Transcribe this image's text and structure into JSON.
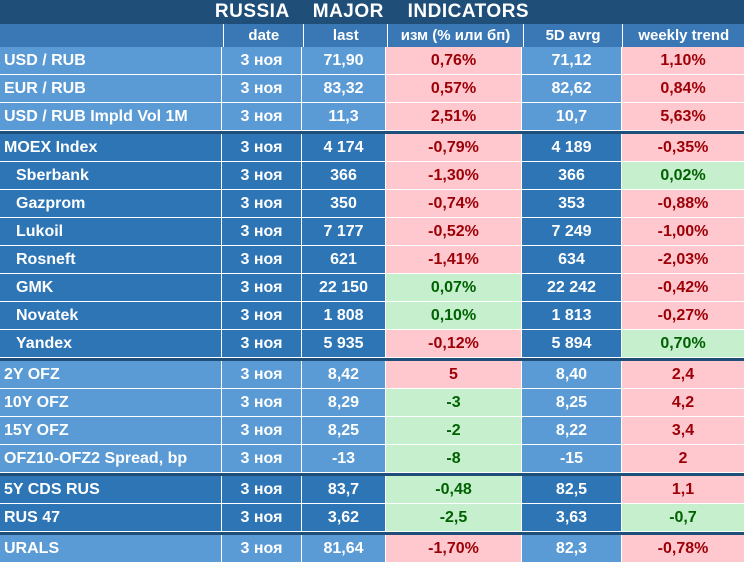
{
  "title": "RUSSIA   MAJOR   INDICATORS",
  "headers": [
    "",
    "date",
    "last",
    "изм (% или бп)",
    "5D avrg",
    "weekly trend"
  ],
  "colors": {
    "title_bg": "#1f4e79",
    "light_row": "#5b9bd5",
    "dark_row": "#2e75b6",
    "negative_bg": "#ffc7ce",
    "negative_text": "#9c0006",
    "positive_bg": "#c6efce",
    "positive_text": "#006100"
  },
  "rows": [
    {
      "name": "USD / RUB",
      "date": "3 ноя",
      "last": "71,90",
      "chg": "0,76%",
      "avg": "71,12",
      "trend": "1,10%"
    },
    {
      "name": "EUR / RUB",
      "date": "3 ноя",
      "last": "83,32",
      "chg": "0,57%",
      "avg": "82,62",
      "trend": "0,84%"
    },
    {
      "name": "USD / RUB Impld Vol 1M",
      "date": "3 ноя",
      "last": "11,3",
      "chg": "2,51%",
      "avg": "10,7",
      "trend": "5,63%"
    },
    {
      "name": "MOEX Index",
      "date": "3 ноя",
      "last": "4 174",
      "chg": "-0,79%",
      "avg": "4 189",
      "trend": "-0,35%"
    },
    {
      "name": "Sberbank",
      "date": "3 ноя",
      "last": "366",
      "chg": "-1,30%",
      "avg": "366",
      "trend": "0,02%"
    },
    {
      "name": "Gazprom",
      "date": "3 ноя",
      "last": "350",
      "chg": "-0,74%",
      "avg": "353",
      "trend": "-0,88%"
    },
    {
      "name": "Lukoil",
      "date": "3 ноя",
      "last": "7 177",
      "chg": "-0,52%",
      "avg": "7 249",
      "trend": "-1,00%"
    },
    {
      "name": "Rosneft",
      "date": "3 ноя",
      "last": "621",
      "chg": "-1,41%",
      "avg": "634",
      "trend": "-2,03%"
    },
    {
      "name": "GMK",
      "date": "3 ноя",
      "last": "22 150",
      "chg": "0,07%",
      "avg": "22 242",
      "trend": "-0,42%"
    },
    {
      "name": "Novatek",
      "date": "3 ноя",
      "last": "1 808",
      "chg": "0,10%",
      "avg": "1 813",
      "trend": "-0,27%"
    },
    {
      "name": "Yandex",
      "date": "3 ноя",
      "last": "5 935",
      "chg": "-0,12%",
      "avg": "5 894",
      "trend": "0,70%"
    },
    {
      "name": "2Y OFZ",
      "date": "3 ноя",
      "last": "8,42",
      "chg": "5",
      "avg": "8,40",
      "trend": "2,4"
    },
    {
      "name": "10Y OFZ",
      "date": "3 ноя",
      "last": "8,29",
      "chg": "-3",
      "avg": "8,25",
      "trend": "4,2"
    },
    {
      "name": "15Y OFZ",
      "date": "3 ноя",
      "last": "8,25",
      "chg": "-2",
      "avg": "8,22",
      "trend": "3,4"
    },
    {
      "name": "OFZ10-OFZ2 Spread, bp",
      "date": "3 ноя",
      "last": "-13",
      "chg": "-8",
      "avg": "-15",
      "trend": "2"
    },
    {
      "name": "5Y CDS RUS",
      "date": "3 ноя",
      "last": "83,7",
      "chg": "-0,48",
      "avg": "82,5",
      "trend": "1,1"
    },
    {
      "name": "RUS 47",
      "date": "3 ноя",
      "last": "3,62",
      "chg": "-2,5",
      "avg": "3,63",
      "trend": "-0,7"
    },
    {
      "name": "URALS",
      "date": "3 ноя",
      "last": "81,64",
      "chg": "-1,70%",
      "avg": "82,3",
      "trend": "-0,78%"
    }
  ]
}
